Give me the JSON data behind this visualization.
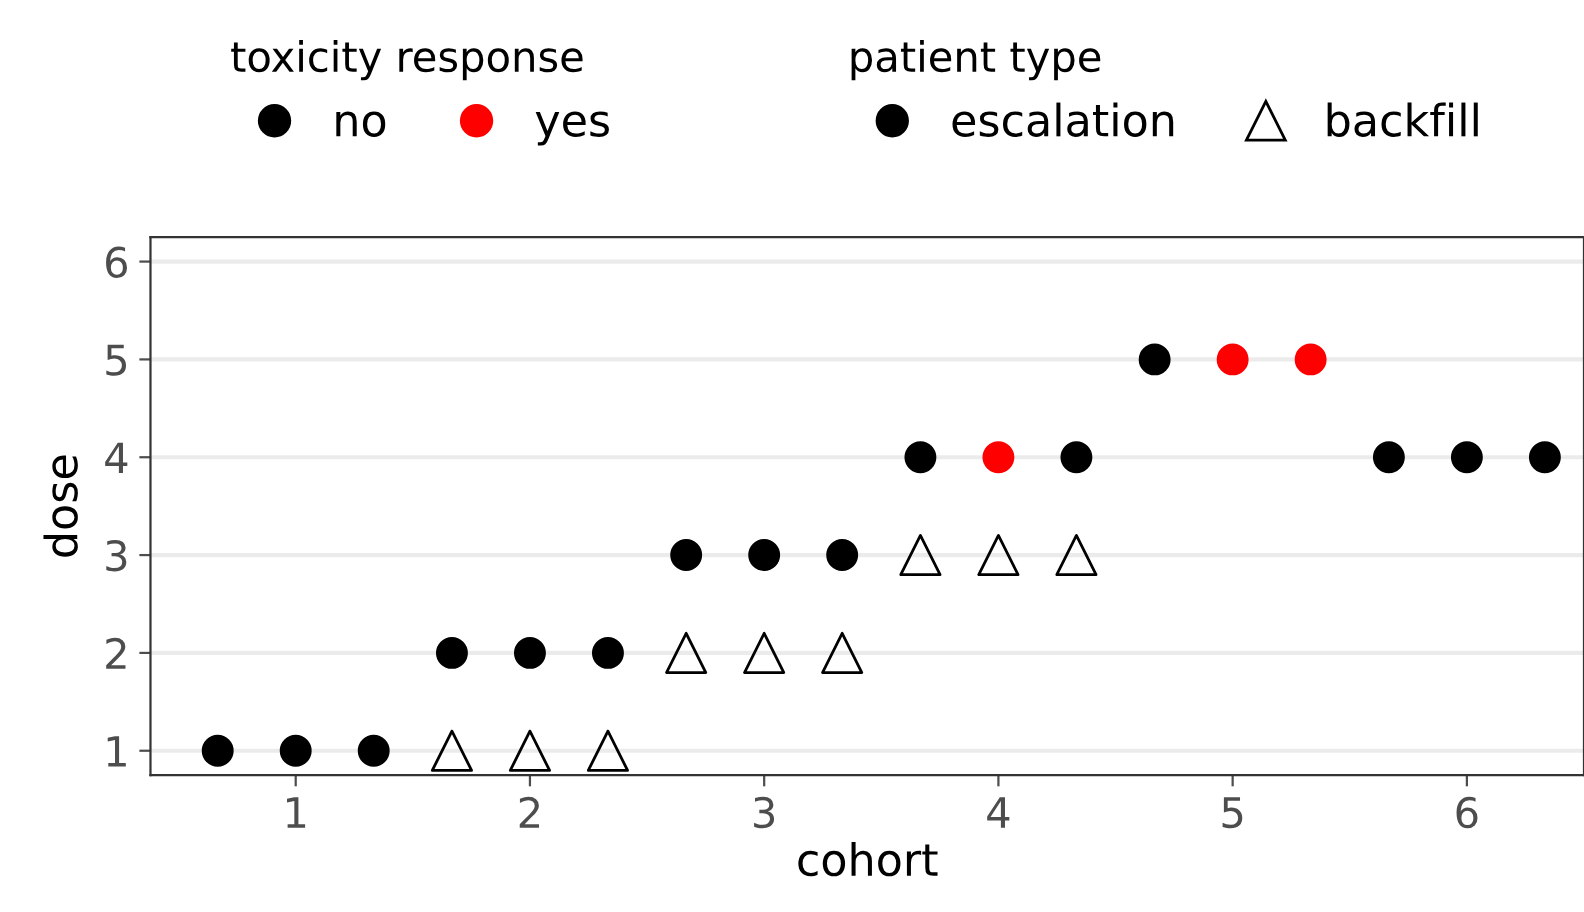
{
  "chart_data": {
    "type": "scatter",
    "xlabel": "cohort",
    "ylabel": "dose",
    "xlim": [
      0.38,
      6.5
    ],
    "ylim": [
      0.75,
      6.25
    ],
    "xticks": [
      1,
      2,
      3,
      4,
      5,
      6
    ],
    "yticks": [
      1,
      2,
      3,
      4,
      5,
      6
    ],
    "grid": "y",
    "legend": "top",
    "legend_title": [
      "toxicity response",
      "patient type"
    ],
    "annotations": [
      "no",
      "yes"
    ],
    "series": [
      {
        "name": "escalation",
        "marker": "circle",
        "x": [
          0.667,
          1,
          1.333,
          1.667,
          2,
          2.333,
          2.667,
          3,
          3.333,
          3.667,
          4,
          4.333,
          4.667,
          5,
          5.333,
          5.667,
          6,
          6.333
        ],
        "values": [
          1,
          1,
          1,
          2,
          2,
          2,
          3,
          3,
          3,
          4,
          4,
          4,
          5,
          5,
          5,
          4,
          4,
          4
        ],
        "colors": [
          "#000000",
          "#000000",
          "#000000",
          "#000000",
          "#000000",
          "#000000",
          "#000000",
          "#000000",
          "#000000",
          "#000000",
          "#ff0000",
          "#000000",
          "#000000",
          "#ff0000",
          "#ff0000",
          "#000000",
          "#000000",
          "#000000"
        ]
      },
      {
        "name": "backfill",
        "color": "#000000",
        "marker": "triangle",
        "x": [
          1.667,
          2,
          2.333,
          2.667,
          3,
          3.333,
          3.667,
          4,
          4.333
        ],
        "values": [
          1,
          1,
          1,
          2,
          2,
          2,
          3,
          3,
          3
        ]
      }
    ]
  }
}
